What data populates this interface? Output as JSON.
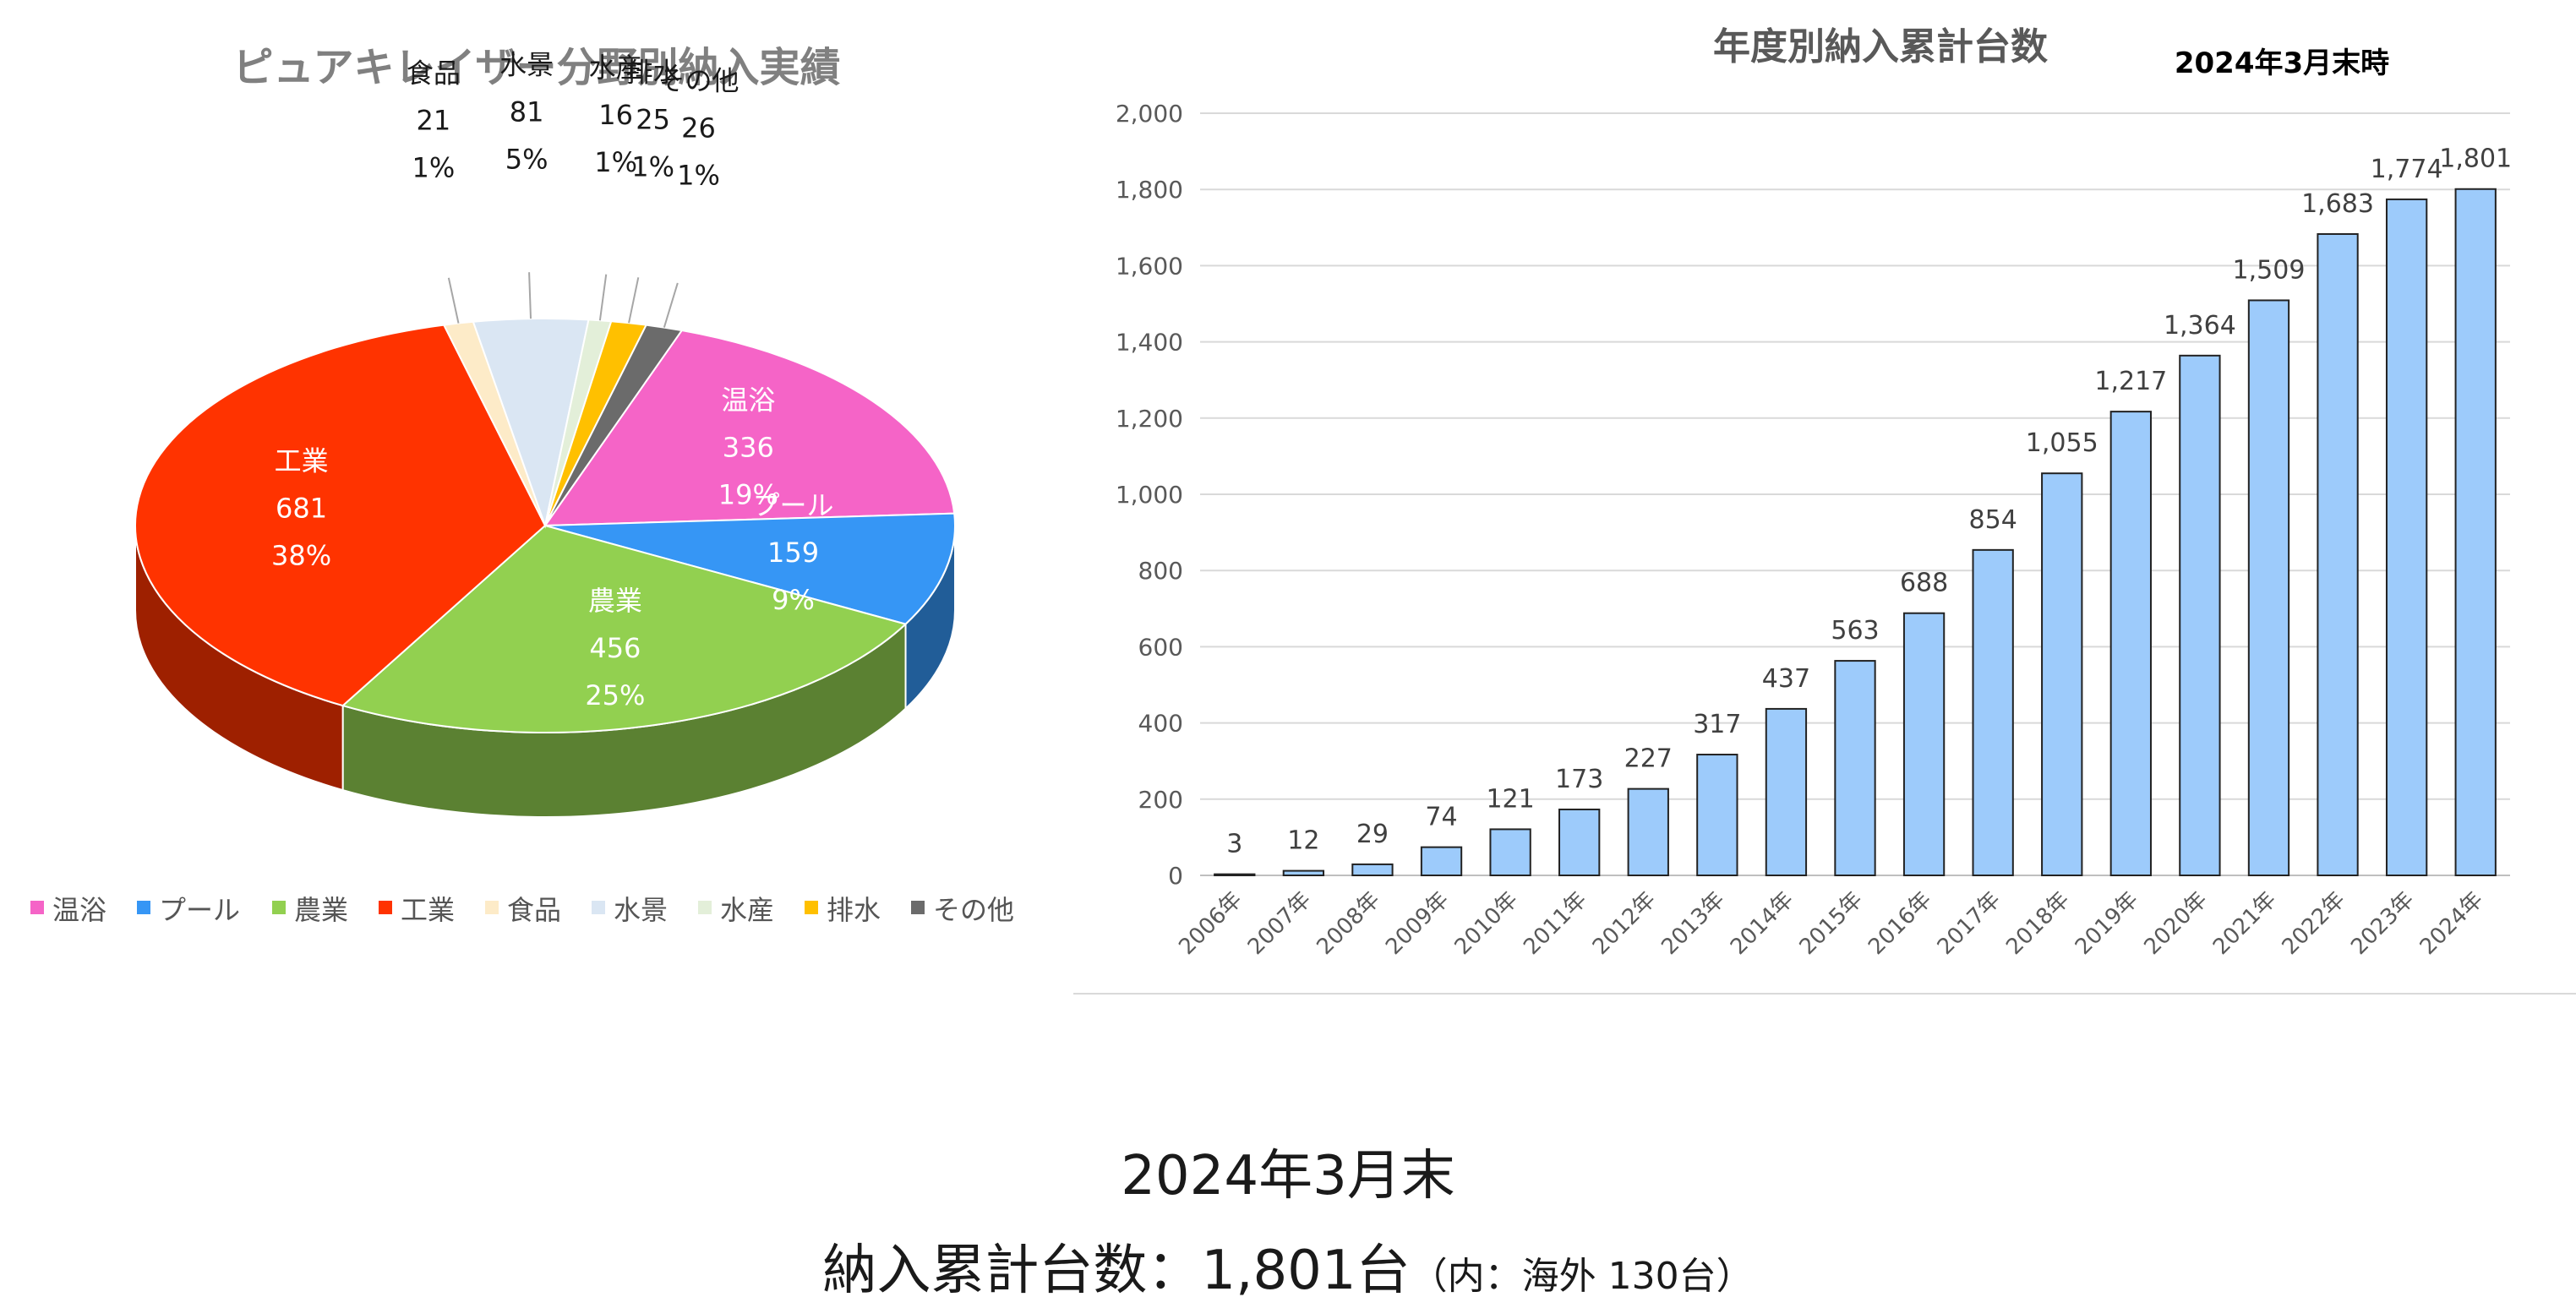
{
  "chart_data": [
    {
      "type": "pie",
      "title": "ピュアキレイザー分野別納入実績",
      "slices": [
        {
          "name": "温浴",
          "value": 336,
          "percent": "19%",
          "color": "#f564c7"
        },
        {
          "name": "プール",
          "value": 159,
          "percent": "9%",
          "color": "#3696f5"
        },
        {
          "name": "農業",
          "value": 456,
          "percent": "25%",
          "color": "#92d050"
        },
        {
          "name": "工業",
          "value": 681,
          "percent": "38%",
          "color": "#ff3300"
        },
        {
          "name": "食品",
          "value": 21,
          "percent": "1%",
          "color": "#fdebc8"
        },
        {
          "name": "水景",
          "value": 81,
          "percent": "5%",
          "color": "#dae6f3"
        },
        {
          "name": "水産",
          "value": 16,
          "percent": "1%",
          "color": "#e3efd9"
        },
        {
          "name": "排水",
          "value": 25,
          "percent": "1%",
          "color": "#ffc000"
        },
        {
          "name": "その他",
          "value": 26,
          "percent": "1%",
          "color": "#6b6b6b"
        }
      ],
      "legend_position": "bottom"
    },
    {
      "type": "bar",
      "title": "年度別納入累計台数",
      "subtitle": "2024年3月末時",
      "categories": [
        "2006年",
        "2007年",
        "2008年",
        "2009年",
        "2010年",
        "2011年",
        "2012年",
        "2013年",
        "2014年",
        "2015年",
        "2016年",
        "2017年",
        "2018年",
        "2019年",
        "2020年",
        "2021年",
        "2022年",
        "2023年",
        "2024年"
      ],
      "values": [
        3,
        12,
        29,
        74,
        121,
        173,
        227,
        317,
        437,
        563,
        688,
        854,
        1055,
        1217,
        1364,
        1509,
        1683,
        1774,
        1801
      ],
      "data_labels": [
        "3",
        "12",
        "29",
        "74",
        "121",
        "173",
        "227",
        "317",
        "437",
        "563",
        "688",
        "854",
        "1,055",
        "1,217",
        "1,364",
        "1,509",
        "1,683",
        "1,774",
        "1,801"
      ],
      "yticks": [
        "0",
        "200",
        "400",
        "600",
        "800",
        "1,000",
        "1,200",
        "1,400",
        "1,600",
        "1,800",
        "2,000"
      ],
      "ylim": [
        0,
        2000
      ],
      "grid": true,
      "bar_color": "#9dcbfb"
    }
  ],
  "footer": {
    "date": "2024年3月末",
    "total_main": "納入累計台数：1,801台",
    "total_note": "（内：海外 130台）"
  }
}
